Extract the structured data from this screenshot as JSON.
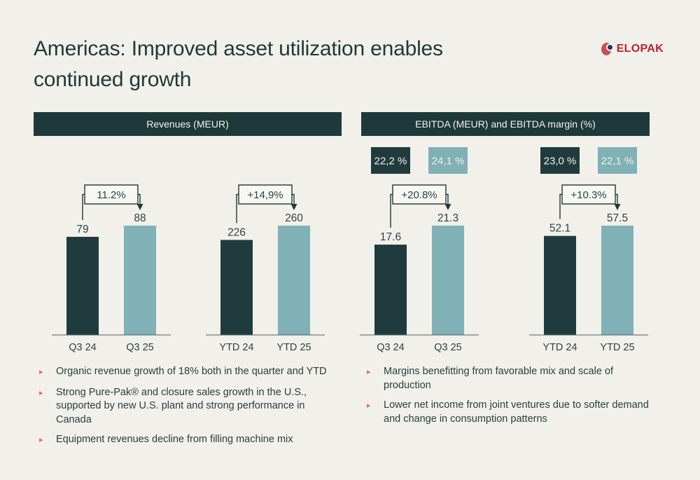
{
  "page": {
    "background": "#f2f0ea"
  },
  "header": {
    "title": "Americas: Improved asset utilization enables continued growth",
    "logo_text": "ELOPAK"
  },
  "sections": [
    {
      "banner": "Revenues (MEUR)",
      "bullets": [
        "Organic revenue growth of 18% both in the quarter and YTD",
        "Strong Pure-Pak® and closure sales growth in the U.S., supported by new U.S. plant and strong performance in Canada",
        "Equipment revenues decline from filling machine mix"
      ]
    },
    {
      "banner": "EBITDA (MEUR) and EBITDA margin (%)",
      "bullets": [
        "Margins benefitting from favorable mix and scale of production",
        "Lower net income from joint ventures due to softer demand and change in consumption patterns"
      ]
    }
  ],
  "chart_data": [
    {
      "type": "bar",
      "section": "Revenues (MEUR)",
      "categories": [
        "Q3 24",
        "Q3 25"
      ],
      "values": [
        79,
        88
      ],
      "value_labels": [
        "79",
        "88"
      ],
      "delta_label": "11.2%"
    },
    {
      "type": "bar",
      "section": "Revenues (MEUR)",
      "categories": [
        "YTD 24",
        "YTD 25"
      ],
      "values": [
        226,
        260
      ],
      "value_labels": [
        "226",
        "260"
      ],
      "delta_label": "+14,9%"
    },
    {
      "type": "bar",
      "section": "EBITDA (MEUR) and EBITDA margin (%)",
      "categories": [
        "Q3 24",
        "Q3 25"
      ],
      "values": [
        17.6,
        21.3
      ],
      "value_labels": [
        "17.6",
        "21.3"
      ],
      "delta_label": "+20.8%",
      "margin_badges": [
        "22,2 %",
        "24,1 %"
      ]
    },
    {
      "type": "bar",
      "section": "EBITDA (MEUR) and EBITDA margin (%)",
      "categories": [
        "YTD 24",
        "YTD 25"
      ],
      "values": [
        52.1,
        57.5
      ],
      "value_labels": [
        "52.1",
        "57.5"
      ],
      "delta_label": "+10.3%",
      "margin_badges": [
        "23,0 %",
        "22,1 %"
      ]
    }
  ],
  "colors": {
    "bar_prior": "#203b3d",
    "bar_current": "#7fb1b6",
    "accent_dark": "#1e3939",
    "callout_fill": "#f8f7f2",
    "text_dark": "#2a4444",
    "bullet_marker": "#e0695e",
    "logo_red": "#c3202f"
  }
}
